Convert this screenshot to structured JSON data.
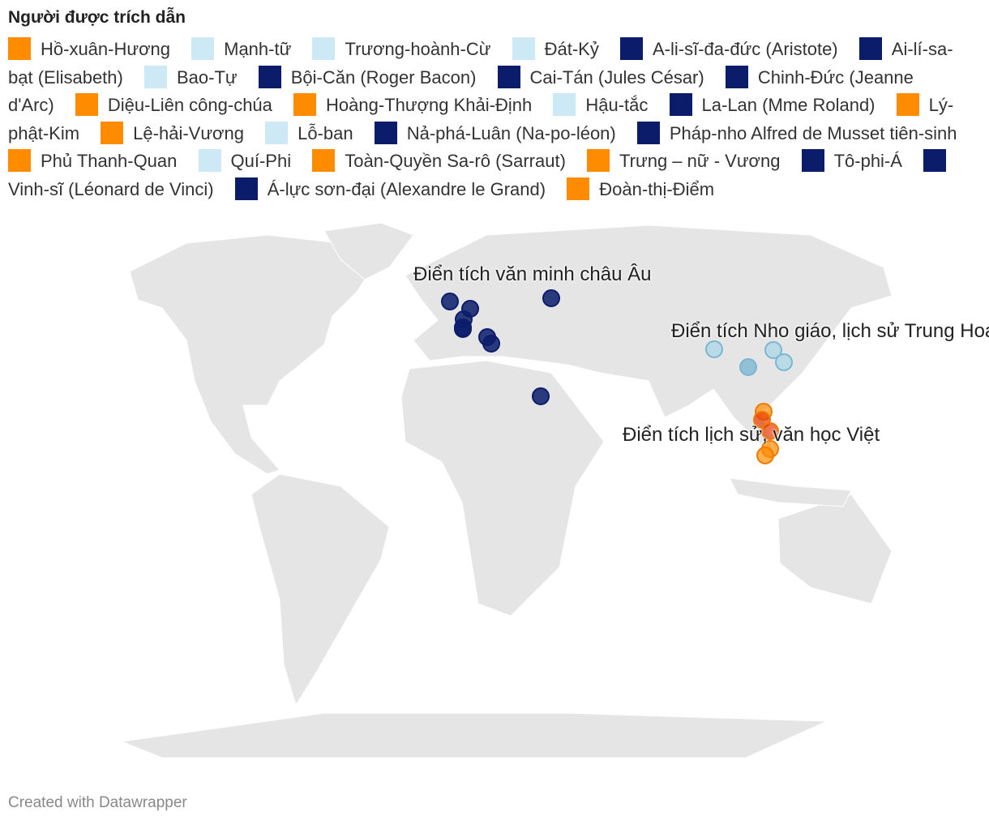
{
  "legend": {
    "title": "Người được trích dẫn",
    "items": [
      {
        "name": "Hồ-xuân-Hương",
        "color": "#ff8c00"
      },
      {
        "name": "Mạnh-tữ",
        "color": "#cde9f5"
      },
      {
        "name": "Trương-hoành-Cừ",
        "color": "#cde9f5"
      },
      {
        "name": "Đát-Kỷ",
        "color": "#cde9f5"
      },
      {
        "name": "A-li-sĩ-đa-đức (Aristote)",
        "color": "#0b1c6b"
      },
      {
        "name": "Ai-lí-sa-bạt (Elisabeth)",
        "color": "#0b1c6b"
      },
      {
        "name": "Bao-Tự",
        "color": "#cde9f5"
      },
      {
        "name": "Bội-Căn (Roger Bacon)",
        "color": "#0b1c6b"
      },
      {
        "name": "Cai-Tán (Jules César)",
        "color": "#0b1c6b"
      },
      {
        "name": "Chinh-Đức (Jeanne d'Arc)",
        "color": "#0b1c6b"
      },
      {
        "name": "Diệu-Liên công-chúa",
        "color": "#ff8c00"
      },
      {
        "name": "Hoàng-Thượng Khải-Định",
        "color": "#ff8c00"
      },
      {
        "name": "Hậu-tắc",
        "color": "#cde9f5"
      },
      {
        "name": "La-Lan (Mme Roland)",
        "color": "#0b1c6b"
      },
      {
        "name": "Lý-phật-Kim",
        "color": "#ff8c00"
      },
      {
        "name": "Lệ-hải-Vương",
        "color": "#ff8c00"
      },
      {
        "name": "Lỗ-ban",
        "color": "#cde9f5"
      },
      {
        "name": "Nả-phá-Luân (Na-po-léon)",
        "color": "#0b1c6b"
      },
      {
        "name": "Pháp-nho Alfred de Musset tiên-sinh",
        "color": "#0b1c6b"
      },
      {
        "name": "Phủ Thanh-Quan",
        "color": "#ff8c00"
      },
      {
        "name": "Quí-Phi",
        "color": "#cde9f5"
      },
      {
        "name": "Toàn-Quyền Sa-rô (Sarraut)",
        "color": "#ff8c00"
      },
      {
        "name": "Trưng – nữ - Vương",
        "color": "#ff8c00"
      },
      {
        "name": "Tô-phi-Á",
        "color": "#0b1c6b"
      },
      {
        "name": "Vinh-sĩ (Léonard de Vinci)",
        "color": "#0b1c6b"
      },
      {
        "name": "Á-lực sơn-đại (Alexandre le Grand)",
        "color": "#0b1c6b"
      },
      {
        "name": "Đoàn-thị-Điểm",
        "color": "#ff8c00"
      }
    ]
  },
  "annotations": [
    "Điển tích văn minh châu Âu",
    "Điển tích Nho giáo, lịch sử Trung Hoa",
    "Điển tích lịch sử, văn học Việt"
  ],
  "footer": "Created with Datawrapper"
}
